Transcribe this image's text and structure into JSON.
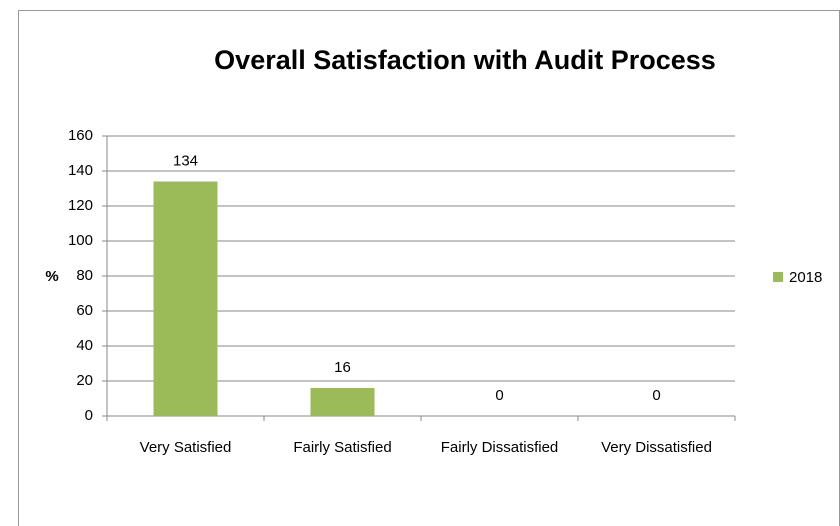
{
  "chart_data": {
    "type": "bar",
    "title": "Overall Satisfaction with Audit Process",
    "y_label": "%",
    "categories": [
      "Very Satisfied",
      "Fairly Satisfied",
      "Fairly Dissatisfied",
      "Very Dissatisfied"
    ],
    "series": [
      {
        "name": "2018",
        "color": "#9bbb59",
        "values": [
          134,
          16,
          0,
          0
        ]
      }
    ],
    "ylim": [
      0,
      160
    ],
    "yticks": [
      0,
      20,
      40,
      60,
      80,
      100,
      120,
      140,
      160
    ],
    "grid": true,
    "legend": "right"
  }
}
